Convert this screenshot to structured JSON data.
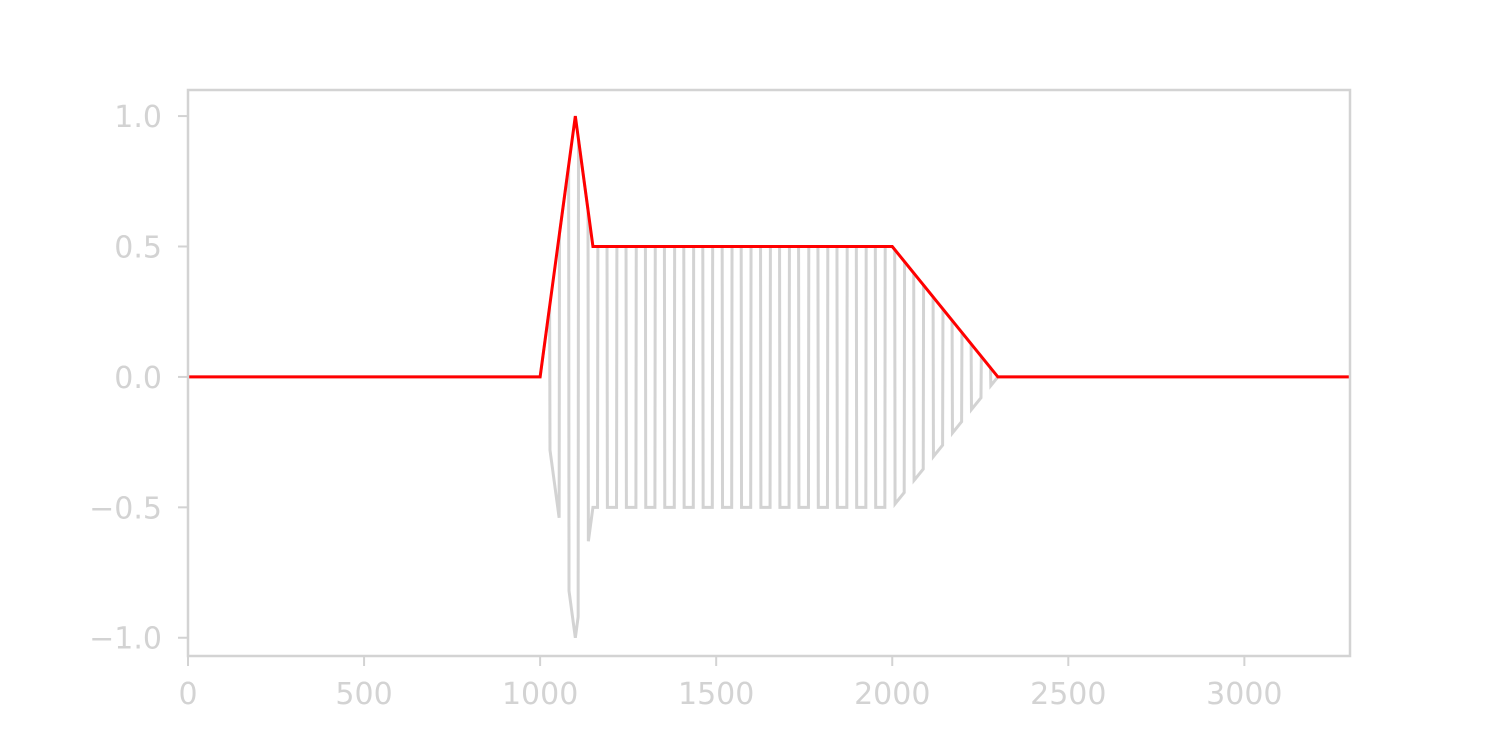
{
  "chart_data": {
    "type": "line",
    "title": "",
    "xlabel": "",
    "ylabel": "",
    "xlim": [
      0,
      3300
    ],
    "ylim": [
      -1.07,
      1.1
    ],
    "grid": false,
    "legend": "none",
    "x_ticks": [
      {
        "value": 0,
        "label": "0"
      },
      {
        "value": 500,
        "label": "500"
      },
      {
        "value": 1000,
        "label": "1000"
      },
      {
        "value": 1500,
        "label": "1500"
      },
      {
        "value": 2000,
        "label": "2000"
      },
      {
        "value": 2500,
        "label": "2500"
      },
      {
        "value": 3000,
        "label": "3000"
      }
    ],
    "y_ticks": [
      {
        "value": -1.0,
        "label": "−1.0"
      },
      {
        "value": -0.5,
        "label": "−0.5"
      },
      {
        "value": 0.0,
        "label": "0.0"
      },
      {
        "value": 0.5,
        "label": "0.5"
      },
      {
        "value": 1.0,
        "label": "1.0"
      }
    ],
    "series": [
      {
        "role": "signal",
        "color": "#d3d3d3",
        "description": "square wave (period ~54.5) modulated by ADSR envelope",
        "sample_rate": 44100,
        "frequency": 810,
        "x_start": 1000,
        "x_end": 2300
      },
      {
        "role": "envelope",
        "color": "#ff0000",
        "x": [
          0,
          1000,
          1100,
          1150,
          2000,
          2300,
          3300
        ],
        "y": [
          0.0,
          0.0,
          1.0,
          0.5,
          0.5,
          0.0,
          0.0
        ]
      }
    ],
    "colors": {
      "axes": "#d3d3d3",
      "tick_labels": "#d3d3d3",
      "signal": "#d3d3d3",
      "envelope": "#ff0000"
    }
  }
}
